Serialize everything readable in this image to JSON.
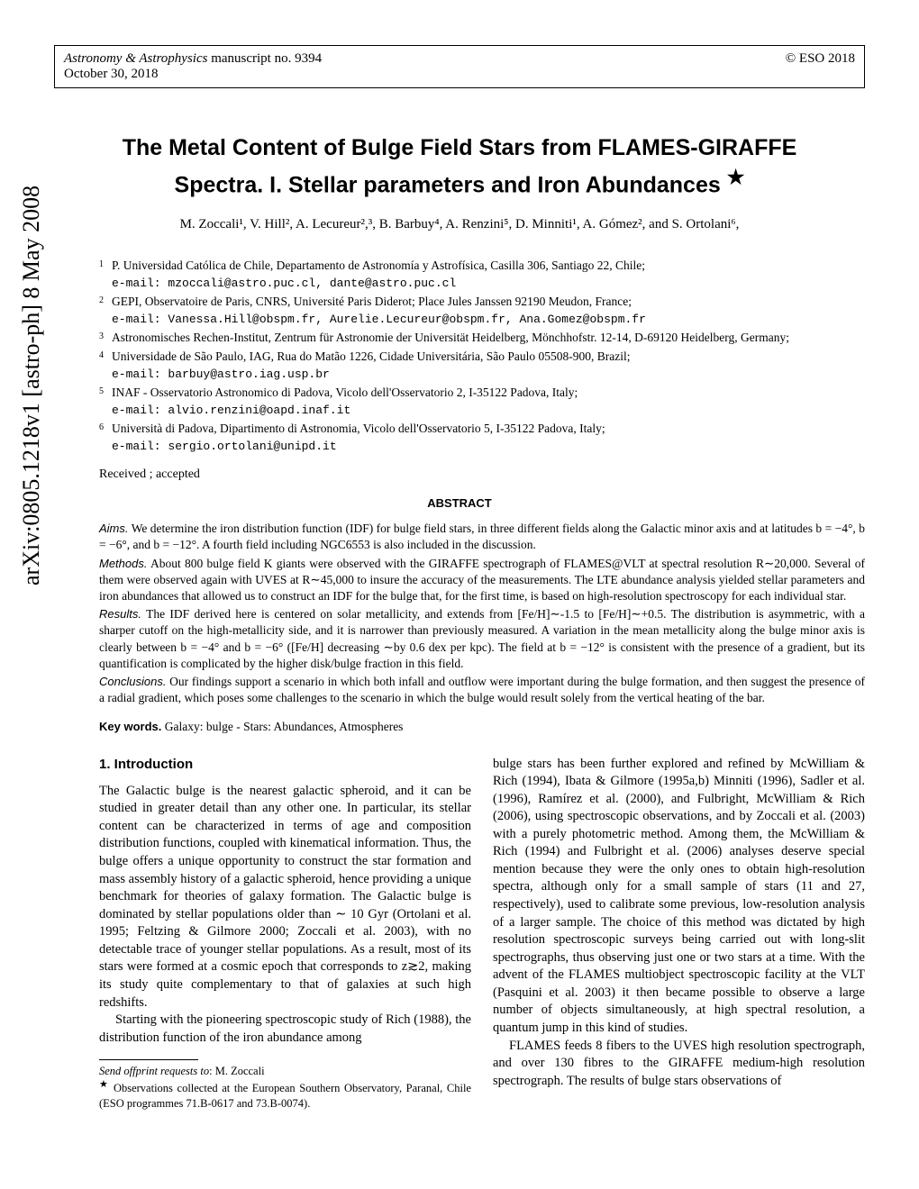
{
  "arxiv": "arXiv:0805.1218v1  [astro-ph]  8 May 2008",
  "header": {
    "journal": "Astronomy & Astrophysics",
    "manuscript": " manuscript no. 9394",
    "date": "October 30, 2018",
    "copyright": "© ESO 2018"
  },
  "title_line1": "The Metal Content of Bulge Field Stars from FLAMES-GIRAFFE",
  "title_line2": "Spectra. I. Stellar parameters and Iron Abundances",
  "title_star": "★",
  "authors_text": "M. Zoccali¹, V. Hill², A. Lecureur²,³, B. Barbuy⁴, A. Renzini⁵, D. Minniti¹, A. Gómez², and S. Ortolani⁶,",
  "affiliations": [
    {
      "num": "1",
      "text": "P. Universidad Católica de Chile, Departamento de Astronomía y Astrofísica, Casilla 306, Santiago 22, Chile;",
      "email": "e-mail: mzoccali@astro.puc.cl, dante@astro.puc.cl"
    },
    {
      "num": "2",
      "text": "GEPI, Observatoire de Paris, CNRS, Université Paris Diderot; Place Jules Janssen 92190 Meudon, France;",
      "email": "e-mail: Vanessa.Hill@obspm.fr, Aurelie.Lecureur@obspm.fr, Ana.Gomez@obspm.fr"
    },
    {
      "num": "3",
      "text": "Astronomisches Rechen-Institut, Zentrum für Astronomie der Universität Heidelberg, Mönchhofstr. 12-14, D-69120 Heidelberg, Germany;",
      "email": ""
    },
    {
      "num": "4",
      "text": "Universidade de São Paulo, IAG, Rua do Matão 1226, Cidade Universitária, São Paulo 05508-900, Brazil;",
      "email": "e-mail: barbuy@astro.iag.usp.br"
    },
    {
      "num": "5",
      "text": "INAF - Osservatorio Astronomico di Padova, Vicolo dell'Osservatorio 2, I-35122 Padova, Italy;",
      "email": "e-mail: alvio.renzini@oapd.inaf.it"
    },
    {
      "num": "6",
      "text": "Università di Padova, Dipartimento di Astronomia, Vicolo dell'Osservatorio 5, I-35122 Padova, Italy;",
      "email": "e-mail: sergio.ortolani@unipd.it"
    }
  ],
  "received": "Received ; accepted",
  "abstract_heading": "ABSTRACT",
  "abstract": {
    "aims_label": "Aims.",
    "aims": " We determine the iron distribution function (IDF) for bulge field stars, in three different fields along the Galactic minor axis and at latitudes b = −4°, b = −6°, and b = −12°. A fourth field including NGC6553 is also included in the discussion.",
    "methods_label": "Methods.",
    "methods": " About 800 bulge field K giants were observed with the GIRAFFE spectrograph of FLAMES@VLT at spectral resolution R∼20,000. Several of them were observed again with UVES at R∼45,000 to insure the accuracy of the measurements. The LTE abundance analysis yielded stellar parameters and iron abundances that allowed us to construct an IDF for the bulge that, for the first time, is based on high-resolution spectroscopy for each individual star.",
    "results_label": "Results.",
    "results": " The IDF derived here is centered on solar metallicity, and extends from [Fe/H]∼-1.5 to [Fe/H]∼+0.5. The distribution is asymmetric, with a sharper cutoff on the high-metallicity side, and it is narrower than previously measured. A variation in the mean metallicity along the bulge minor axis is clearly between b = −4° and b = −6° ([Fe/H] decreasing ∼by 0.6 dex per kpc). The field at b = −12° is consistent with the presence of a gradient, but its quantification is complicated by the higher disk/bulge fraction in this field.",
    "conclusions_label": "Conclusions.",
    "conclusions": " Our findings support a scenario in which both infall and outflow were important during the bulge formation, and then suggest the presence of a radial gradient, which poses some challenges to the scenario in which the bulge would result solely from the vertical heating of the bar."
  },
  "keywords_label": "Key words.",
  "keywords": " Galaxy: bulge - Stars: Abundances, Atmospheres",
  "section1_heading": "1. Introduction",
  "col1_p1": "The Galactic bulge is the nearest galactic spheroid, and it can be studied in greater detail than any other one. In particular, its stellar content can be characterized in terms of age and composition distribution functions, coupled with kinematical information. Thus, the bulge offers a unique opportunity to construct the star formation and mass assembly history of a galactic spheroid, hence providing a unique benchmark for theories of galaxy formation. The Galactic bulge is dominated by stellar populations older than ∼ 10 Gyr (Ortolani et al. 1995; Feltzing & Gilmore 2000; Zoccali et al. 2003), with no detectable trace of younger stellar populations. As a result, most of its stars were formed at a cosmic epoch that corresponds to z≳2, making its study quite complementary to that of galaxies at such high redshifts.",
  "col1_p2": "Starting with the pioneering spectroscopic study of Rich (1988), the distribution function of the iron abundance among",
  "col2_p1": "bulge stars has been further explored and refined by McWilliam & Rich (1994), Ibata & Gilmore (1995a,b) Minniti (1996), Sadler et al. (1996), Ramírez et al. (2000), and Fulbright, McWilliam & Rich (2006), using spectroscopic observations, and by Zoccali et al. (2003) with a purely photometric method. Among them, the McWilliam & Rich (1994) and Fulbright et al. (2006) analyses deserve special mention because they were the only ones to obtain high-resolution spectra, although only for a small sample of stars (11 and 27, respectively), used to calibrate some previous, low-resolution analysis of a larger sample. The choice of this method was dictated by high resolution spectroscopic surveys being carried out with long-slit spectrographs, thus observing just one or two stars at a time. With the advent of the FLAMES multiobject spectroscopic facility at the VLT (Pasquini et al. 2003) it then became possible to observe a large number of objects simultaneously, at high spectral resolution, a quantum jump in this kind of studies.",
  "col2_p2": "FLAMES feeds 8 fibers to the UVES high resolution spectrograph, and over 130 fibres to the GIRAFFE medium-high resolution spectrograph. The results of bulge stars observations of",
  "footnote": {
    "send_label": "Send offprint requests to",
    "send_to": ": M. Zoccali",
    "star": "★",
    "text": " Observations collected at the European Southern Observatory, Paranal, Chile (ESO programmes 71.B-0617 and 73.B-0074)."
  }
}
